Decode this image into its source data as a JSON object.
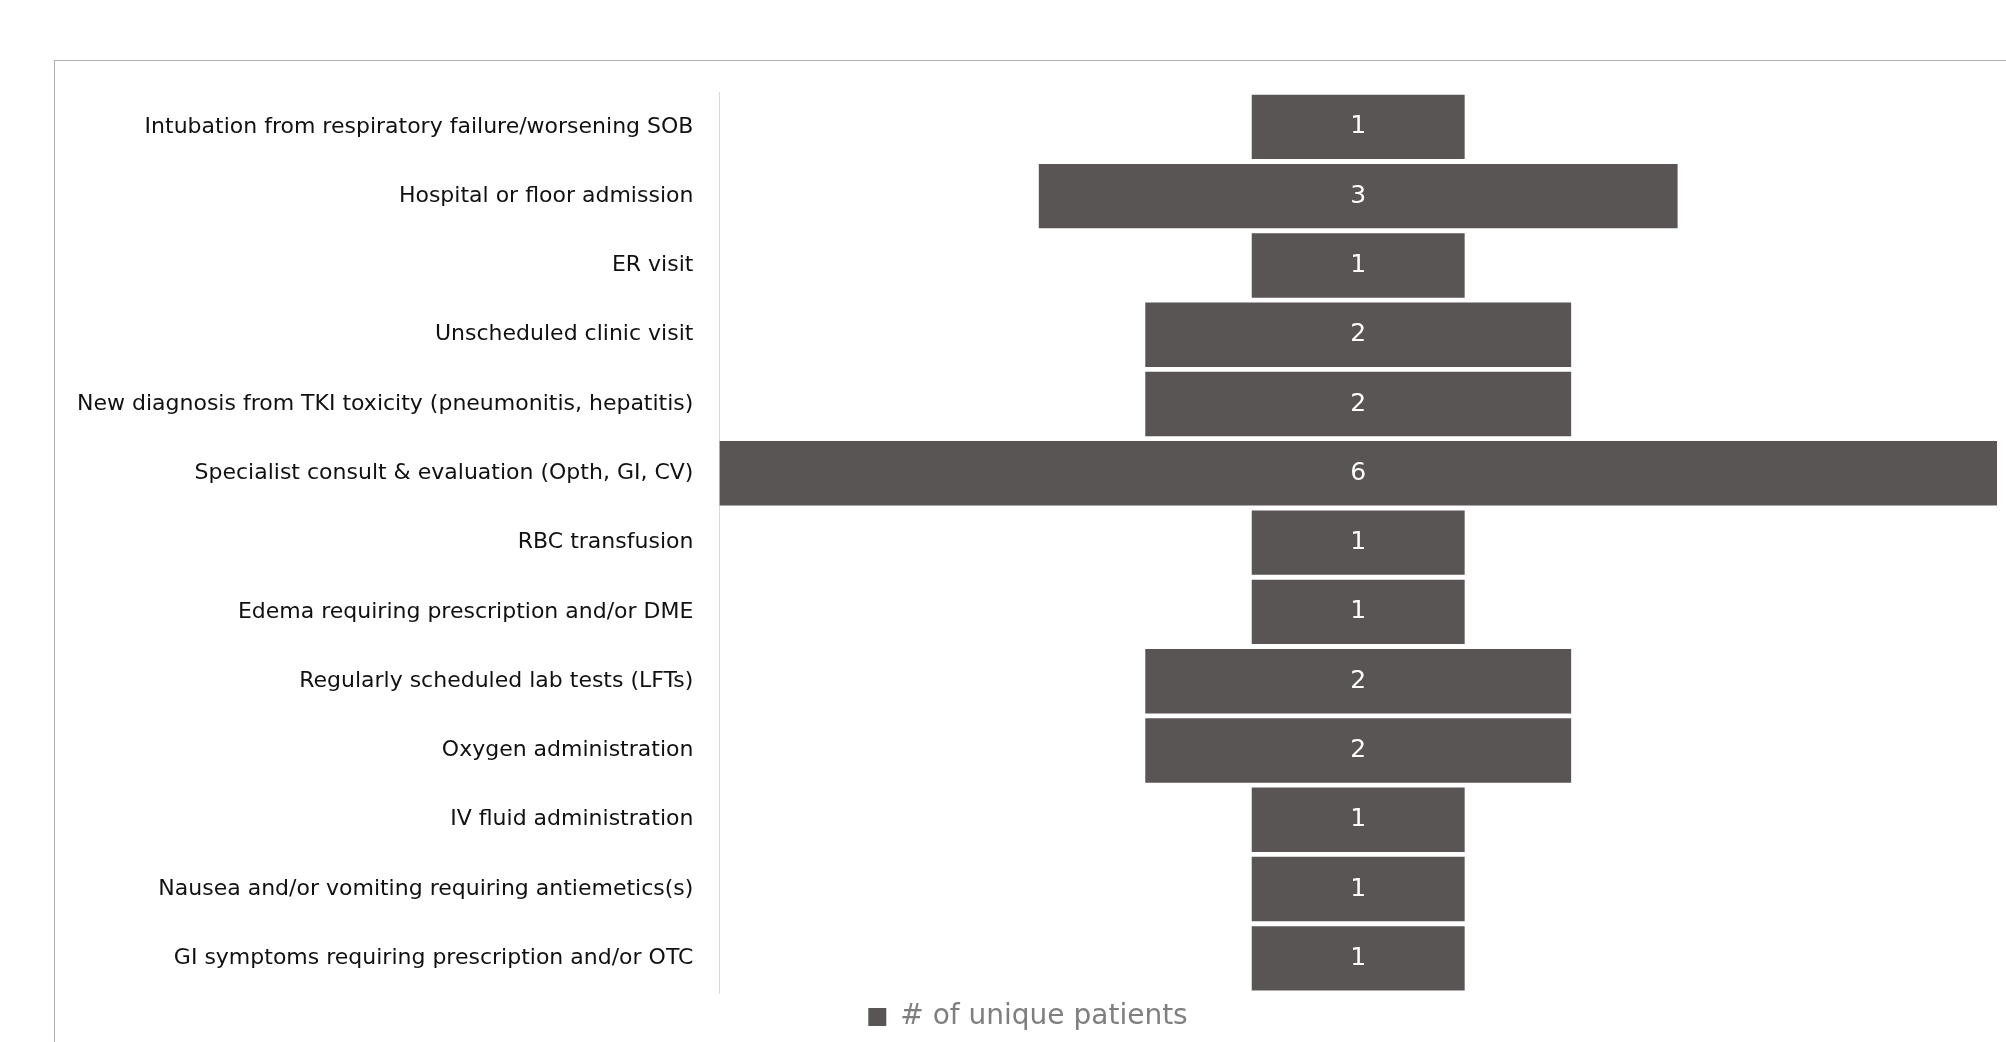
{
  "chart_data": {
    "type": "other",
    "categories": [
      "Intubation from respiratory failure/worsening SOB",
      "Hospital or floor admission",
      "ER visit",
      "Unscheduled clinic visit",
      "New diagnosis from TKI toxicity (pneumonitis, hepatitis)",
      "Specialist consult & evaluation (Opth, GI, CV)",
      "RBC transfusion",
      "Edema requiring prescription and/or DME",
      "Regularly scheduled lab tests (LFTs)",
      "Oxygen administration",
      "IV fluid administration",
      "Nausea and/or vomiting requiring antiemetics(s)",
      "GI symptoms requiring prescription and/or OTC"
    ],
    "series": [
      {
        "name": "# of unique patients",
        "color": "#595554",
        "values": [
          1,
          3,
          1,
          2,
          2,
          6,
          1,
          1,
          2,
          2,
          1,
          1,
          1
        ]
      }
    ],
    "data_labels": true,
    "legend": "bottom"
  }
}
